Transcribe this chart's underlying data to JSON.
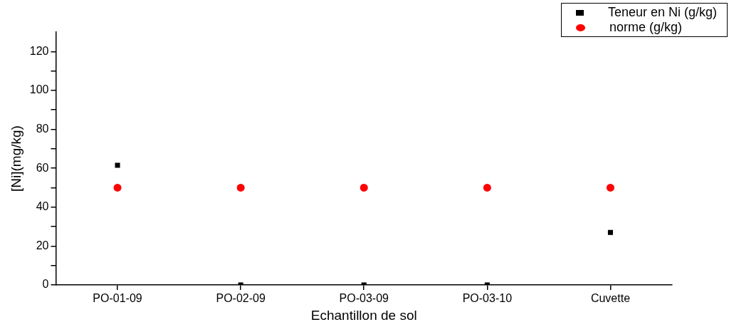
{
  "chart_data": {
    "type": "scatter",
    "xlabel": "Echantillon de sol",
    "ylabel": "[Ni](mg/kg)",
    "categories": [
      "PO-01-09",
      "PO-02-09",
      "PO-03-09",
      "PO-03-10",
      "Cuvette"
    ],
    "series": [
      {
        "name": "Teneur en Ni (g/kg)",
        "color": "#000000",
        "marker": "square",
        "values": [
          61.5,
          0,
          0,
          0,
          27
        ]
      },
      {
        "name": "norme (g/kg)",
        "color": "#ff0000",
        "marker": "circle",
        "values": [
          50,
          50,
          50,
          50,
          50
        ]
      }
    ],
    "ylim": [
      0,
      130
    ],
    "yticks": [
      0,
      {
        "value": 10,
        "label": null
      },
      20,
      {
        "value": 30,
        "label": null
      },
      40,
      {
        "value": 50,
        "label": null
      },
      60,
      {
        "value": 70,
        "label": null
      },
      80,
      {
        "value": 90,
        "label": null
      },
      100,
      {
        "value": 110,
        "label": null
      },
      120
    ],
    "grid": false,
    "legend": "top right"
  }
}
